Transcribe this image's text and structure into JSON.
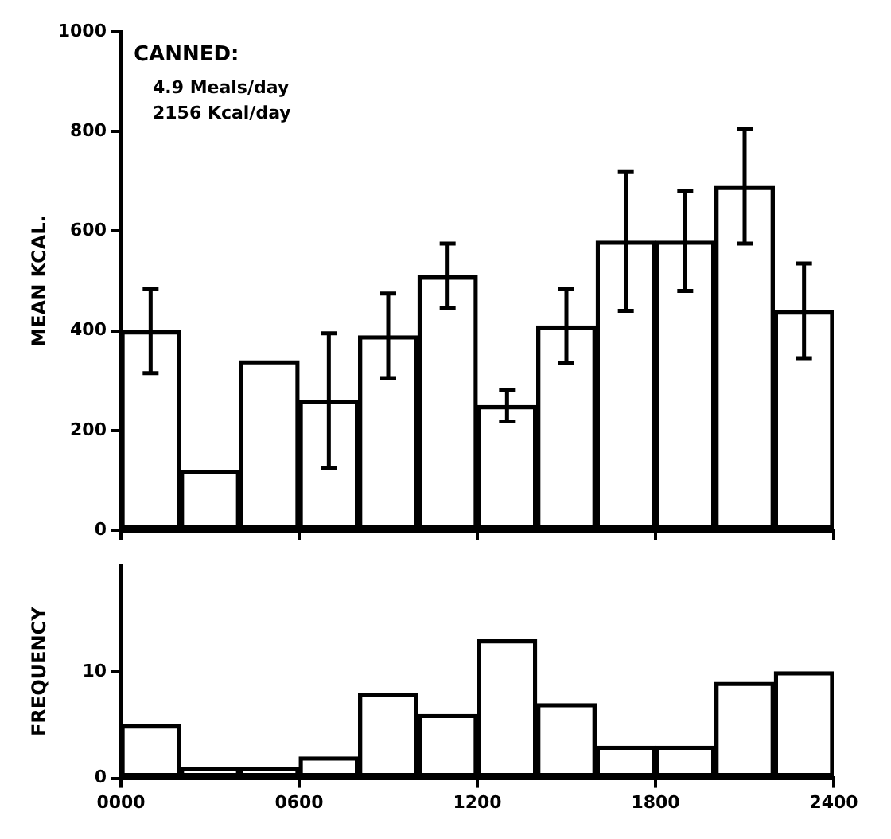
{
  "chart_data": [
    {
      "type": "bar",
      "ylabel": "MEAN KCAL.",
      "annotations": [
        "CANNED:",
        "4.9 Meals/day",
        "2156 Kcal/day"
      ],
      "x": [
        100,
        300,
        500,
        700,
        900,
        1100,
        1300,
        1500,
        1700,
        1900,
        2100,
        2300
      ],
      "values": [
        400,
        120,
        340,
        260,
        390,
        510,
        250,
        410,
        580,
        580,
        690,
        440
      ],
      "errors": [
        85,
        null,
        null,
        135,
        85,
        65,
        32,
        75,
        140,
        100,
        115,
        95
      ],
      "color": "#000000",
      "ylim": [
        0,
        1000
      ],
      "yticks": [
        0,
        200,
        400,
        600,
        800,
        1000
      ],
      "xlim": [
        0,
        2400
      ],
      "xticks": [
        {
          "value": 0,
          "label": null
        },
        {
          "value": 600,
          "label": null
        },
        {
          "value": 1200,
          "label": null
        },
        {
          "value": 1800,
          "label": null
        },
        {
          "value": 2400,
          "label": null
        }
      ],
      "tick_labels": "y",
      "grid": false,
      "legend": false
    },
    {
      "type": "bar",
      "ylabel": "FREQUENCY",
      "x": [
        100,
        300,
        500,
        700,
        900,
        1100,
        1300,
        1500,
        1700,
        1900,
        2100,
        2300
      ],
      "values": [
        5,
        1,
        1,
        2,
        8,
        6,
        13,
        7,
        3,
        3,
        9,
        10
      ],
      "color": "#000000",
      "ylim": [
        0,
        20
      ],
      "yticks": [
        0,
        10
      ],
      "xlim": [
        0,
        2400
      ],
      "xticks": [
        {
          "value": 0,
          "label": "0000"
        },
        {
          "value": 600,
          "label": "0600"
        },
        {
          "value": 1200,
          "label": "1200"
        },
        {
          "value": 1800,
          "label": "1800"
        },
        {
          "value": 2400,
          "label": "2400"
        }
      ],
      "grid": false,
      "legend": false
    }
  ]
}
